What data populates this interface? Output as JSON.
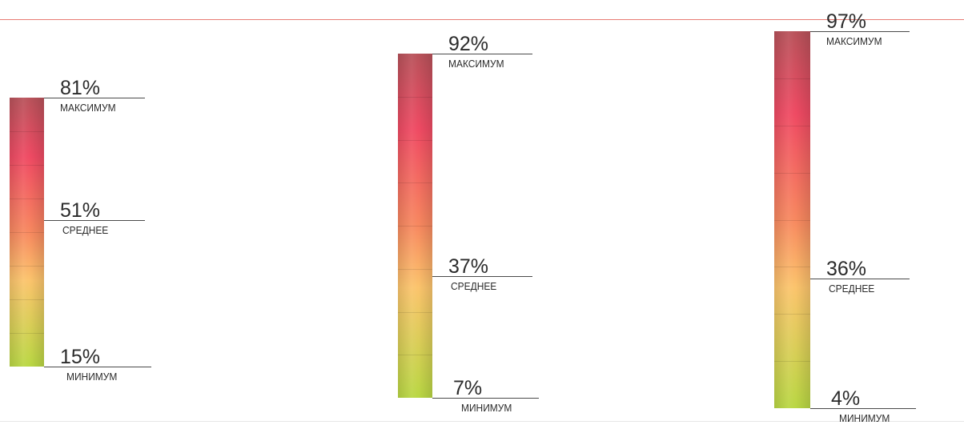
{
  "colors": {
    "top_line": "#e87b74",
    "gradient_top": "#b8525a",
    "gradient_upper": "#ef4a63",
    "gradient_mid": "#f7885f",
    "gradient_lower_mid": "#fbc46c",
    "gradient_bottom": "#b9d743"
  },
  "chart_data": {
    "type": "bar",
    "gauges": [
      {
        "max": {
          "value": "81%",
          "label": "МАКСИМУМ",
          "pct": 81
        },
        "avg": {
          "value": "51%",
          "label": "СРЕДНЕЕ",
          "pct": 51
        },
        "min": {
          "value": "15%",
          "label": "МИНИМУМ",
          "pct": 15
        }
      },
      {
        "max": {
          "value": "92%",
          "label": "МАКСИМУМ",
          "pct": 92
        },
        "avg": {
          "value": "37%",
          "label": "СРЕДНЕЕ",
          "pct": 37
        },
        "min": {
          "value": "7%",
          "label": "МИНИМУМ",
          "pct": 7
        }
      },
      {
        "max": {
          "value": "97%",
          "label": "МАКСИМУМ",
          "pct": 97
        },
        "avg": {
          "value": "36%",
          "label": "СРЕДНЕЕ",
          "pct": 36
        },
        "min": {
          "value": "4%",
          "label": "МИНИМУМ",
          "pct": 4
        }
      }
    ]
  }
}
